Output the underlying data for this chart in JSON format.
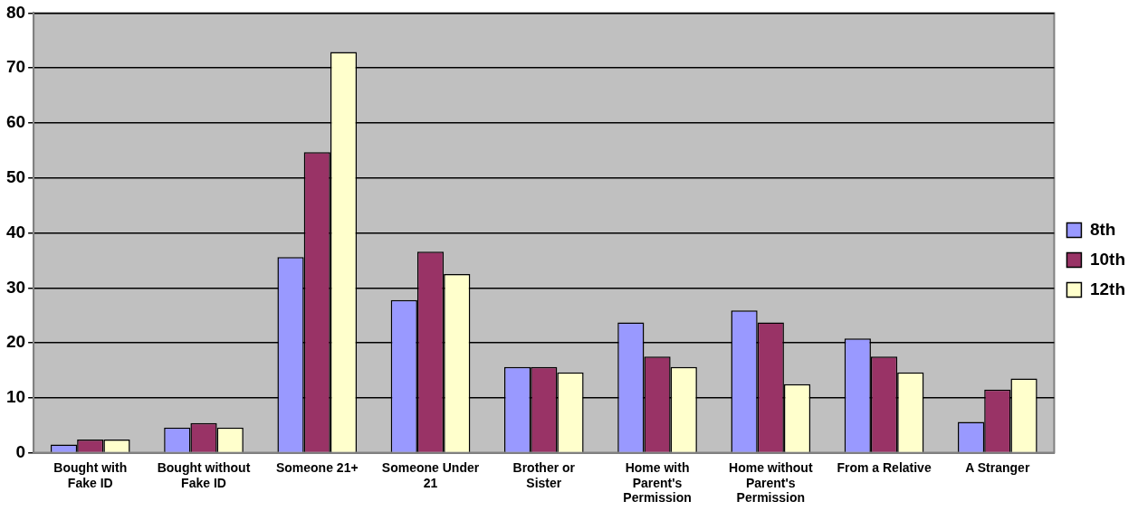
{
  "chart_data": {
    "type": "bar",
    "categories": [
      "Bought with Fake ID",
      "Bought without Fake ID",
      "Someone 21+",
      "Someone Under 21",
      "Brother or Sister",
      "Home with Parent's Permission",
      "Home without Parent's Permission",
      "From a Relative",
      "A Stranger"
    ],
    "series": [
      {
        "name": "8th",
        "color": "#9999ff",
        "values": [
          1.5,
          4.6,
          35.6,
          27.8,
          15.6,
          23.7,
          25.9,
          20.8,
          5.6
        ]
      },
      {
        "name": "10th",
        "color": "#993366",
        "values": [
          2.4,
          5.4,
          54.7,
          36.6,
          15.6,
          17.5,
          23.7,
          17.5,
          11.5
        ]
      },
      {
        "name": "12th",
        "color": "#ffffcc",
        "values": [
          2.4,
          4.6,
          72.9,
          32.5,
          14.6,
          15.6,
          12.5,
          14.6,
          13.5
        ]
      }
    ],
    "ylim": [
      0,
      80
    ],
    "yticks": [
      0,
      10,
      20,
      30,
      40,
      50,
      60,
      70,
      80
    ],
    "grid": "y",
    "legend": "right"
  }
}
